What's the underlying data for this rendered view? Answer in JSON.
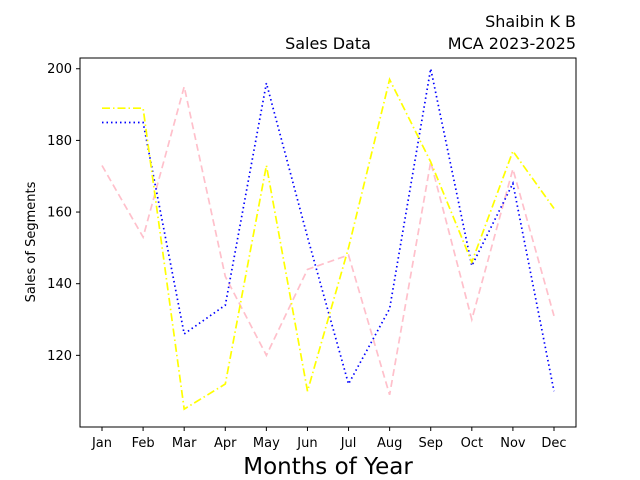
{
  "chart_data": {
    "type": "line",
    "title": "Sales Data",
    "author_name": "Shaibin K B",
    "author_course": "MCA 2023-2025",
    "xlabel": "Months of Year",
    "ylabel": "Sales of Segments",
    "categories": [
      "Jan",
      "Feb",
      "Mar",
      "Apr",
      "May",
      "Jun",
      "Jul",
      "Aug",
      "Sep",
      "Oct",
      "Nov",
      "Dec"
    ],
    "ylim": [
      100,
      203
    ],
    "yticks": [
      120,
      140,
      160,
      180,
      200
    ],
    "grid": false,
    "series": [
      {
        "color": "#ffc0cb",
        "style": "dashed",
        "values": [
          173,
          153,
          195,
          142,
          120,
          144,
          148,
          109,
          174,
          130,
          172,
          131
        ]
      },
      {
        "color": "#0000ff",
        "style": "dotted",
        "values": [
          185,
          185,
          126,
          134,
          196,
          153,
          112,
          133,
          200,
          145,
          168,
          110
        ]
      },
      {
        "color": "#ffff00",
        "style": "dashdot",
        "values": [
          189,
          189,
          105,
          112,
          173,
          110,
          150,
          197,
          174,
          146,
          177,
          161
        ]
      }
    ]
  }
}
